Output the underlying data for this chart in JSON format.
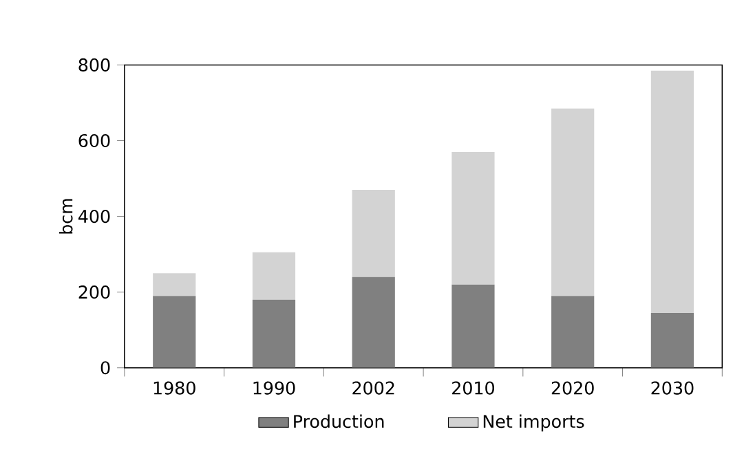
{
  "chart_data": {
    "type": "bar",
    "stacked": true,
    "ylabel": "bcm",
    "categories": [
      "1980",
      "1990",
      "2002",
      "2010",
      "2020",
      "2030"
    ],
    "series": [
      {
        "name": "Production",
        "color": "#808080",
        "values": [
          190,
          180,
          240,
          220,
          190,
          145
        ]
      },
      {
        "name": "Net imports",
        "color": "#d3d3d3",
        "values": [
          60,
          125,
          230,
          350,
          495,
          640
        ]
      }
    ],
    "ylim": [
      0,
      800
    ],
    "yticks": [
      0,
      200,
      400,
      600,
      800
    ],
    "grid": false,
    "legend": "bottom"
  }
}
